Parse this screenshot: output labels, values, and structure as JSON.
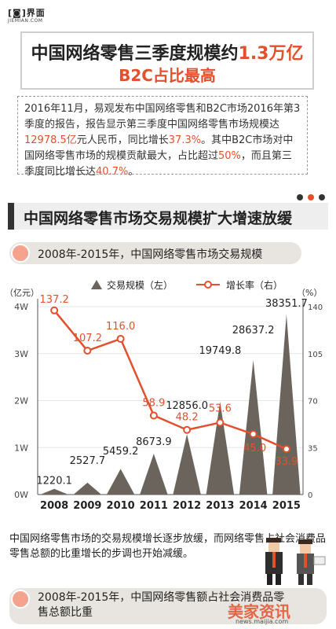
{
  "brand": {
    "mark": "[◙]界面",
    "sub": "JIEMIAN.COM"
  },
  "headline": {
    "line1_prefix": "中国网络零售三季度规模约",
    "line1_highlight": "1.3万亿",
    "line2": "B2C占比最高"
  },
  "intro": {
    "t1": "2016年11月，易观发布中国网络零售和B2C市场2016年第3季度的报告，报告显示第三季度中国网络零售市场规模达",
    "v1": "12978.5亿",
    "t2": "元人民币，同比增长",
    "v2": "37.3%",
    "t3": "。其中B2C市场对中国网络零售市场的规模贡献最大，占比超过",
    "v3": "50%",
    "t4": "，而且第三季度同比增长达",
    "v4": "40.7%",
    "t5": "。"
  },
  "section": {
    "title": "中国网络零售市场交易规模扩大增速放缓"
  },
  "subsection": {
    "title": "2008年-2015年，中国网络零售市场交易规模"
  },
  "chart_data": {
    "type": "bar",
    "categories": [
      "2008",
      "2009",
      "2010",
      "2011",
      "2012",
      "2013",
      "2014",
      "2015"
    ],
    "series": [
      {
        "name": "交易规模（左）",
        "values": [
          1220.1,
          2527.7,
          5459.2,
          8673.9,
          12856.0,
          19749.8,
          28637.2,
          38351.7
        ],
        "labels": [
          "1220.1",
          "2527.7",
          "5459.2",
          "8673.9",
          "12856.0",
          "19749.8",
          "28637.2",
          "38351.7"
        ],
        "axis": "left",
        "mark": "triangle"
      },
      {
        "name": "增长率（右）",
        "values": [
          137.2,
          107.2,
          116.0,
          58.9,
          48.2,
          53.6,
          45.0,
          33.9
        ],
        "labels": [
          "137.2",
          "107.2",
          "116.0",
          "58.9",
          "48.2",
          "53.6",
          "45.0",
          "33.9"
        ],
        "axis": "right",
        "mark": "line"
      }
    ],
    "ylabel_left": "（亿元）",
    "ylabel_right": "（%）",
    "yticks_left": [
      "0W",
      "1W",
      "2W",
      "3W",
      "4W"
    ],
    "yticks_right": [
      "0",
      "35",
      "70",
      "105",
      "140"
    ],
    "ylim_left": [
      0,
      40000
    ],
    "ylim_right": [
      0,
      140
    ],
    "legend_position": "top",
    "colors": {
      "bars": "#6b645c",
      "line": "#e2502e"
    }
  },
  "footer": {
    "text": "中国网络零售市场的交易规模增长逐步放缓，而网络零售占社会消费品零售总额的比重增长的步调也开始减缓。"
  },
  "next_section": {
    "title": "2008年-2015年，中国网络零售额占社会消费品零售总额比重"
  },
  "watermark": {
    "text": "美家资讯",
    "url": "news.maijia.com"
  }
}
